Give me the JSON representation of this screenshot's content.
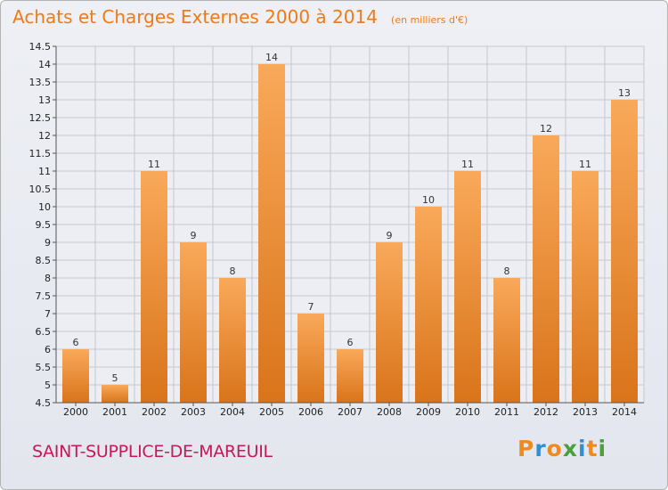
{
  "chart_data": {
    "type": "bar",
    "title": "Achats et Charges Externes 2000 à 2014",
    "subtitle": "(en milliers d'€)",
    "categories": [
      "2000",
      "2001",
      "2002",
      "2003",
      "2004",
      "2005",
      "2006",
      "2007",
      "2008",
      "2009",
      "2010",
      "2011",
      "2012",
      "2013",
      "2014"
    ],
    "values": [
      6,
      5,
      11,
      9,
      8,
      14,
      7,
      6,
      9,
      10,
      11,
      8,
      12,
      11,
      13
    ],
    "ylim": [
      4.5,
      14.5
    ],
    "yticks": [
      "4.5",
      "5",
      "5.5",
      "6",
      "6.5",
      "7",
      "7.5",
      "8",
      "8.5",
      "9",
      "9.5",
      "10",
      "10.5",
      "11",
      "11.5",
      "12",
      "12.5",
      "13",
      "13.5",
      "14",
      "14.5"
    ],
    "grid": true,
    "legend": "none",
    "bar_color_top": "#f9a95a",
    "bar_color_bottom": "#d9741a",
    "grid_color": "#c8c8c8"
  },
  "footer": {
    "commune": "SAINT-SUPPLICE-DE-MAREUIL",
    "brand_letters": [
      "P",
      "r",
      "o",
      "x",
      "i",
      "t",
      "i"
    ],
    "brand_colors": [
      "#f18a1d",
      "#2f8fd0",
      "#f18a1d",
      "#4aa03a",
      "#2f8fd0",
      "#f18a1d",
      "#4aa03a"
    ]
  }
}
